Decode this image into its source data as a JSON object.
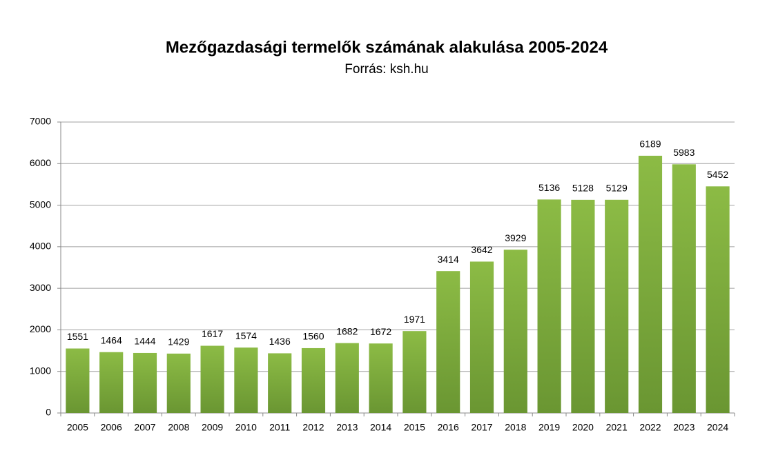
{
  "chart_data": {
    "type": "bar",
    "title": "Mezőgazdasági termelők számának alakulása 2005-2024",
    "subtitle": "Forrás: ksh.hu",
    "categories": [
      "2005",
      "2006",
      "2007",
      "2008",
      "2009",
      "2010",
      "2011",
      "2012",
      "2013",
      "2014",
      "2015",
      "2016",
      "2017",
      "2018",
      "2019",
      "2020",
      "2021",
      "2022",
      "2023",
      "2024"
    ],
    "values": [
      1551,
      1464,
      1444,
      1429,
      1617,
      1574,
      1436,
      1560,
      1682,
      1672,
      1971,
      3414,
      3642,
      3929,
      5136,
      5128,
      5129,
      6189,
      5983,
      5452
    ],
    "color": "#8cbb45",
    "ylim": [
      0,
      7000
    ],
    "yticks": [
      0,
      1000,
      2000,
      3000,
      4000,
      5000,
      6000,
      7000
    ],
    "grid": true
  }
}
